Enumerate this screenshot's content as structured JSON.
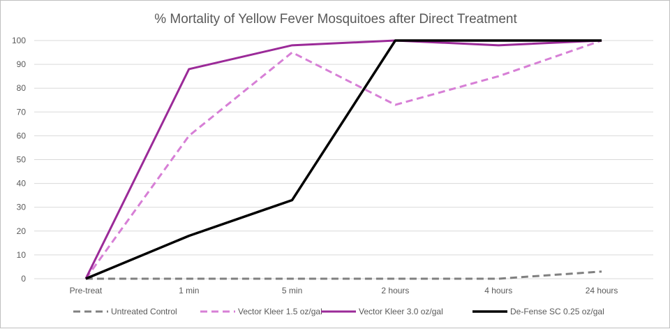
{
  "chart_data": {
    "type": "line",
    "title": "% Mortality of Yellow Fever Mosquitoes after Direct Treatment",
    "xlabel": "",
    "ylabel": "",
    "categories": [
      "Pre-treat",
      "1 min",
      "5 min",
      "2 hours",
      "4 hours",
      "24 hours"
    ],
    "ylim": [
      0,
      100
    ],
    "yticks": [
      0,
      10,
      20,
      30,
      40,
      50,
      60,
      70,
      80,
      90,
      100
    ],
    "grid": true,
    "legend_position": "bottom",
    "series": [
      {
        "name": "Untreated Control",
        "values": [
          0,
          0,
          0,
          0,
          0,
          3
        ],
        "color": "#808080",
        "dash": "dashed",
        "width": 3
      },
      {
        "name": "Vector Kleer 1.5 oz/gal",
        "values": [
          0,
          60,
          95,
          73,
          85,
          100
        ],
        "color": "#d77fd6",
        "dash": "dashed",
        "width": 3
      },
      {
        "name": "Vector Kleer 3.0 oz/gal",
        "values": [
          0,
          88,
          98,
          100,
          98,
          100
        ],
        "color": "#9b2a98",
        "dash": "solid",
        "width": 3
      },
      {
        "name": "De-Fense SC 0.25 oz/gal",
        "values": [
          0,
          18,
          33,
          100,
          100,
          100
        ],
        "color": "#000000",
        "dash": "solid",
        "width": 3.5
      }
    ]
  }
}
